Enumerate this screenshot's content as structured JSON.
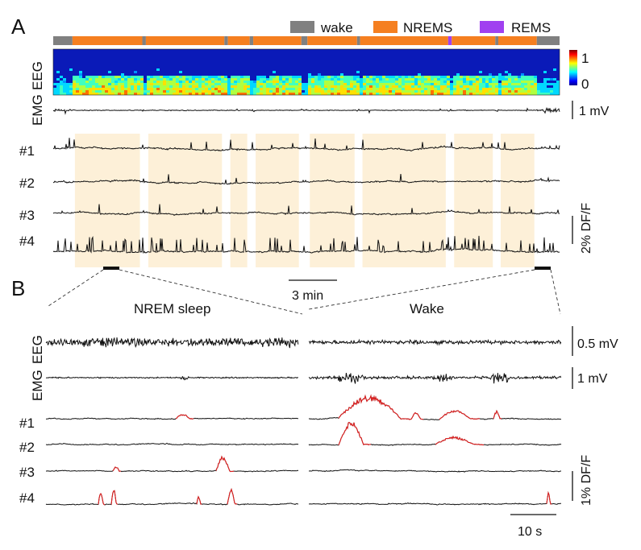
{
  "panel_a": {
    "letter": "A",
    "legend": [
      {
        "label": "wake",
        "color": "#808080"
      },
      {
        "label": "NREMS",
        "color": "#f57f20"
      },
      {
        "label": "REMS",
        "color": "#a040f0"
      }
    ],
    "hypnogram": [
      {
        "state": "wake",
        "from": 0,
        "to": 0.038
      },
      {
        "state": "NREMS",
        "from": 0.038,
        "to": 0.176
      },
      {
        "state": "wake",
        "from": 0.176,
        "to": 0.183
      },
      {
        "state": "NREMS",
        "from": 0.183,
        "to": 0.338
      },
      {
        "state": "wake",
        "from": 0.338,
        "to": 0.345
      },
      {
        "state": "NREMS",
        "from": 0.345,
        "to": 0.388
      },
      {
        "state": "wake",
        "from": 0.388,
        "to": 0.395
      },
      {
        "state": "NREMS",
        "from": 0.395,
        "to": 0.49
      },
      {
        "state": "wake",
        "from": 0.49,
        "to": 0.502
      },
      {
        "state": "NREMS",
        "from": 0.502,
        "to": 0.6
      },
      {
        "state": "wake",
        "from": 0.6,
        "to": 0.606
      },
      {
        "state": "NREMS",
        "from": 0.606,
        "to": 0.78
      },
      {
        "state": "REMS",
        "from": 0.78,
        "to": 0.787
      },
      {
        "state": "NREMS",
        "from": 0.787,
        "to": 0.873
      },
      {
        "state": "wake",
        "from": 0.873,
        "to": 0.879
      },
      {
        "state": "NREMS",
        "from": 0.879,
        "to": 0.955
      },
      {
        "state": "wake",
        "from": 0.955,
        "to": 1.0
      }
    ],
    "colorbar": {
      "max": "1",
      "min": "0"
    },
    "row_labels": {
      "eeg": "EEG",
      "emg": "EMG"
    },
    "emg_scale": "1 mV",
    "neurons": [
      "#1",
      "#2",
      "#3",
      "#4"
    ],
    "dff_scale": "2% DF/F",
    "time_scale": "3 min"
  },
  "panel_b": {
    "letter": "B",
    "left_title": "NREM sleep",
    "right_title": "Wake",
    "row_labels": {
      "eeg": "EEG",
      "emg": "EMG"
    },
    "eeg_scale": "0.5 mV",
    "emg_scale": "1 mV",
    "neurons": [
      "#1",
      "#2",
      "#3",
      "#4"
    ],
    "dff_scale": "1% DF/F",
    "time_scale": "10 s"
  }
}
